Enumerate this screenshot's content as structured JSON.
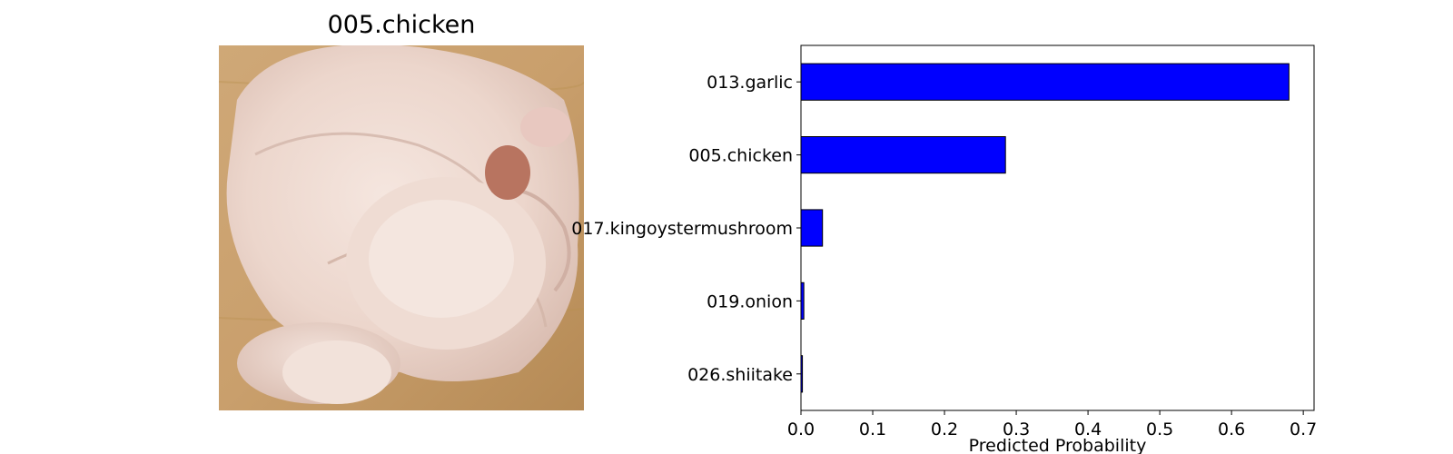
{
  "image_panel": {
    "title": "005.chicken",
    "photo_subject": "raw whole chicken on wooden board"
  },
  "chart_data": {
    "type": "bar",
    "orientation": "horizontal",
    "categories": [
      "013.garlic",
      "005.chicken",
      "017.kingoystermushroom",
      "019.onion",
      "026.shiitake"
    ],
    "values": [
      0.68,
      0.285,
      0.03,
      0.004,
      0.002
    ],
    "xlabel": "Predicted Probability",
    "ylabel": "",
    "xlim": [
      0,
      0.715
    ],
    "xticks": [
      "0.0",
      "0.1",
      "0.2",
      "0.3",
      "0.4",
      "0.5",
      "0.6",
      "0.7"
    ],
    "grid": false,
    "bar_color": "#0000ff",
    "bar_edge_color": "#000000"
  }
}
